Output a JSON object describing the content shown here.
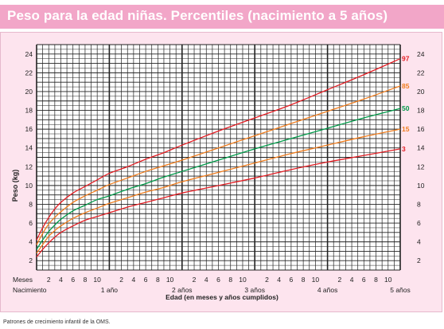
{
  "title": "Peso para la edad niñas. Percentiles (nacimiento a 5 años)",
  "footer": "Patrones de crecimiento infantil de la OMS.",
  "colors": {
    "title_bar": "#f2a6c8",
    "panel": "#fde4ee",
    "p97": "#e31e24",
    "p85": "#f07d1e",
    "p50": "#009a49",
    "p15": "#f07d1e",
    "p3": "#e31e24"
  },
  "chart_data": {
    "type": "line",
    "title": "Peso para la edad niñas. Percentiles (nacimiento a 5 años)",
    "ylabel": "Peso (kg)",
    "xlabel": "Edad (en meses y años cumplidos)",
    "x_unit": "meses",
    "xlim": [
      0,
      60
    ],
    "ylim": [
      1,
      25
    ],
    "y_ticks": [
      2,
      4,
      6,
      8,
      10,
      12,
      14,
      16,
      18,
      20,
      22,
      24
    ],
    "x_row_label": "Meses",
    "x_month_ticks": [
      {
        "x": 2,
        "label": "2"
      },
      {
        "x": 4,
        "label": "4"
      },
      {
        "x": 6,
        "label": "6"
      },
      {
        "x": 8,
        "label": "8"
      },
      {
        "x": 10,
        "label": "10"
      },
      {
        "x": 14,
        "label": "2"
      },
      {
        "x": 16,
        "label": "4"
      },
      {
        "x": 18,
        "label": "6"
      },
      {
        "x": 20,
        "label": "8"
      },
      {
        "x": 22,
        "label": "10"
      },
      {
        "x": 26,
        "label": "2"
      },
      {
        "x": 28,
        "label": "4"
      },
      {
        "x": 30,
        "label": "6"
      },
      {
        "x": 32,
        "label": "8"
      },
      {
        "x": 34,
        "label": "10"
      },
      {
        "x": 38,
        "label": "2"
      },
      {
        "x": 40,
        "label": "4"
      },
      {
        "x": 42,
        "label": "6"
      },
      {
        "x": 44,
        "label": "8"
      },
      {
        "x": 46,
        "label": "10"
      },
      {
        "x": 50,
        "label": "2"
      },
      {
        "x": 52,
        "label": "4"
      },
      {
        "x": 54,
        "label": "6"
      },
      {
        "x": 56,
        "label": "8"
      },
      {
        "x": 58,
        "label": "10"
      }
    ],
    "x_year_labels": [
      {
        "x": 0,
        "label": "Nacimiento"
      },
      {
        "x": 12,
        "label": "1 año"
      },
      {
        "x": 24,
        "label": "2 años"
      },
      {
        "x": 36,
        "label": "3 años"
      },
      {
        "x": 48,
        "label": "4 años"
      },
      {
        "x": 60,
        "label": "5 años"
      }
    ],
    "grid": true,
    "x": [
      0,
      1,
      2,
      3,
      4,
      6,
      8,
      10,
      12,
      15,
      18,
      21,
      24,
      30,
      36,
      42,
      48,
      54,
      60
    ],
    "series": [
      {
        "name": "97",
        "color": "#e31e24",
        "values": [
          4.2,
          5.5,
          6.6,
          7.5,
          8.2,
          9.2,
          9.9,
          10.6,
          11.3,
          12.0,
          12.8,
          13.5,
          14.3,
          15.8,
          17.2,
          18.6,
          20.2,
          21.8,
          23.5
        ]
      },
      {
        "name": "85",
        "color": "#f07d1e",
        "values": [
          3.7,
          4.9,
          5.9,
          6.6,
          7.2,
          8.2,
          8.9,
          9.5,
          10.1,
          10.8,
          11.5,
          12.1,
          12.7,
          14.0,
          15.3,
          16.6,
          17.9,
          19.2,
          20.6
        ]
      },
      {
        "name": "50",
        "color": "#009a49",
        "values": [
          3.2,
          4.2,
          5.1,
          5.8,
          6.4,
          7.3,
          7.9,
          8.5,
          8.9,
          9.6,
          10.2,
          10.9,
          11.5,
          12.7,
          13.9,
          15.0,
          16.1,
          17.2,
          18.2
        ]
      },
      {
        "name": "15",
        "color": "#f07d1e",
        "values": [
          2.8,
          3.7,
          4.6,
          5.2,
          5.7,
          6.5,
          7.1,
          7.6,
          8.1,
          8.7,
          9.3,
          9.8,
          10.4,
          11.4,
          12.4,
          13.4,
          14.3,
          15.2,
          16.0
        ]
      },
      {
        "name": "3",
        "color": "#e31e24",
        "values": [
          2.4,
          3.2,
          3.9,
          4.5,
          5.0,
          5.7,
          6.3,
          6.7,
          7.1,
          7.7,
          8.2,
          8.7,
          9.2,
          10.0,
          10.8,
          11.7,
          12.5,
          13.2,
          13.9
        ]
      }
    ]
  }
}
